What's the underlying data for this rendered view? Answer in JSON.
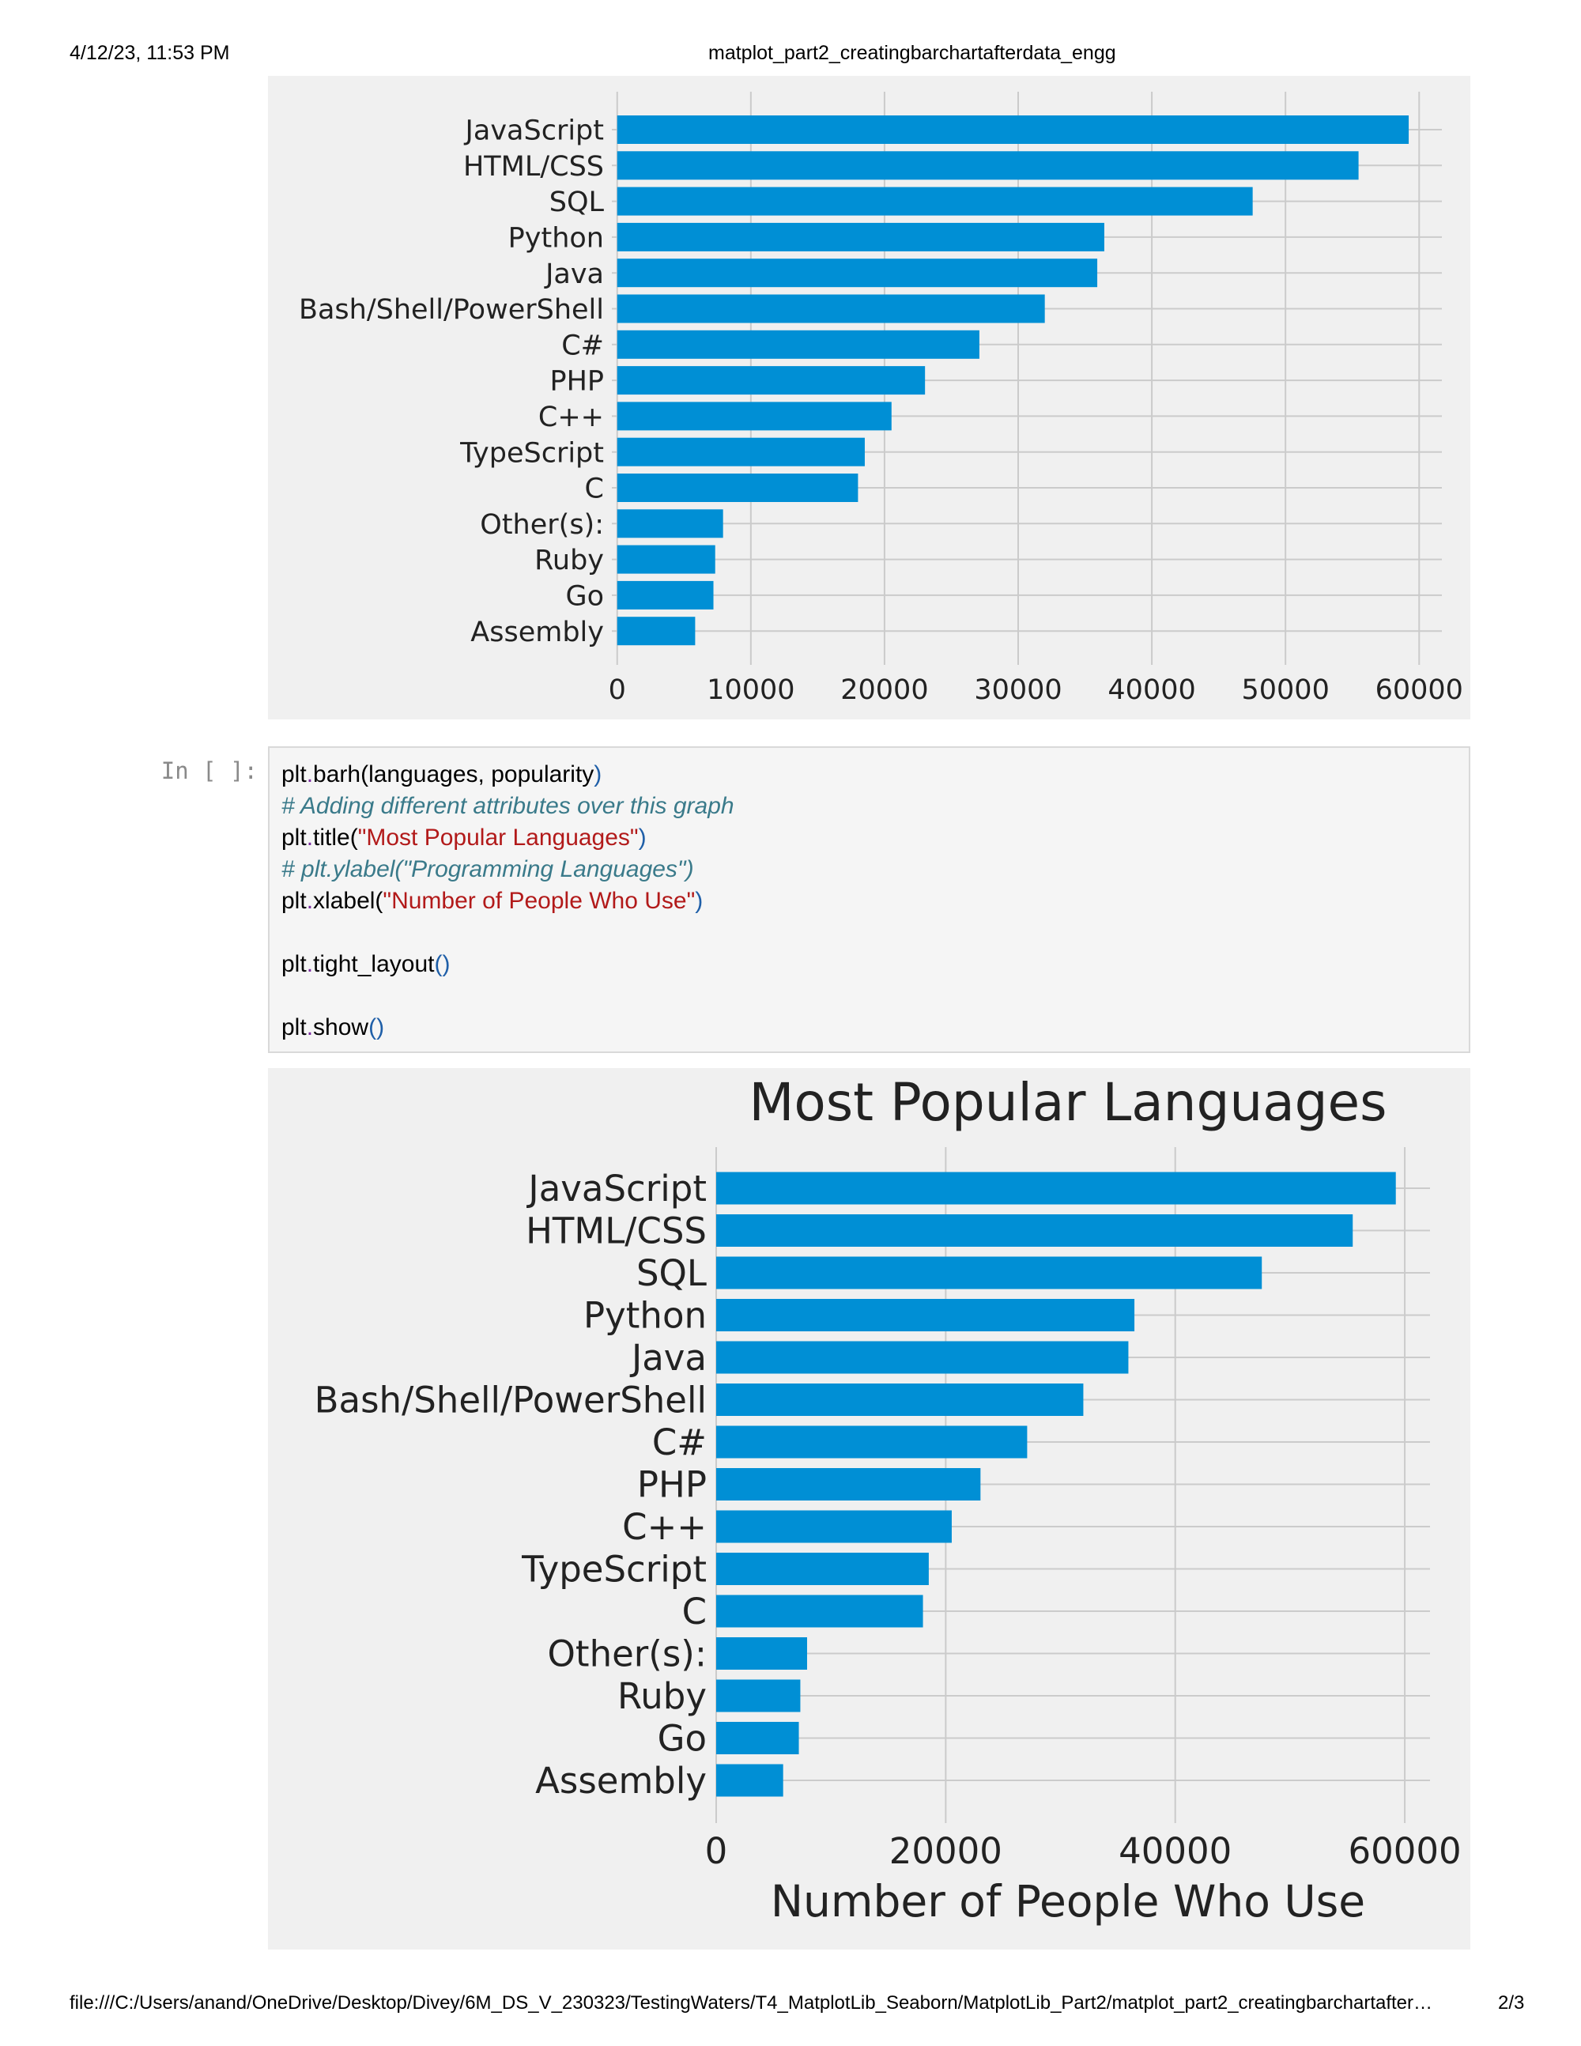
{
  "page_header": {
    "datetime": "4/12/23, 11:53 PM",
    "doc_title": "matplot_part2_creatingbarchartafterdata_engg"
  },
  "page_footer": {
    "path": "file:///C:/Users/anand/OneDrive/Desktop/Divey/6M_DS_V_230323/TestingWaters/T4_MatplotLib_Seaborn/MatplotLib_Part2/matplot_part2_creatingbarchartafter…",
    "page": "2/3"
  },
  "code_cell": {
    "prompt": "In [ ]:",
    "line1": {
      "obj": "plt",
      "dot": ".",
      "fn": "barh",
      "open": "(",
      "args": "languages, popularity",
      "close": ")"
    },
    "line2": "# Adding different attributes over this graph",
    "line3": {
      "obj": "plt",
      "dot": ".",
      "fn": "title",
      "open": "(",
      "str": "\"Most Popular Languages\"",
      "close": ")"
    },
    "line4": "# plt.ylabel(\"Programming Languages\")",
    "line5": {
      "obj": "plt",
      "dot": ".",
      "fn": "xlabel",
      "open": "(",
      "str": "\"Number of People Who Use\"",
      "close": ")"
    },
    "line6": {
      "obj": "plt",
      "dot": ".",
      "fn": "tight_layout",
      "parens": "()"
    },
    "line7": {
      "obj": "plt",
      "dot": ".",
      "fn": "show",
      "parens": "()"
    }
  },
  "colors": {
    "bar": "#008fd5",
    "figure_bg": "#f0f0f0",
    "grid": "#cbcbcb"
  },
  "chart_data": [
    {
      "type": "bar",
      "orientation": "horizontal",
      "title": "",
      "xlabel": "",
      "ylabel": "",
      "categories": [
        "JavaScript",
        "HTML/CSS",
        "SQL",
        "Python",
        "Java",
        "Bash/Shell/PowerShell",
        "C#",
        "PHP",
        "C++",
        "TypeScript",
        "C",
        "Other(s):",
        "Ruby",
        "Go",
        "Assembly"
      ],
      "values": [
        59219,
        55466,
        47544,
        36443,
        35917,
        31991,
        27097,
        23030,
        20524,
        18523,
        18017,
        7920,
        7331,
        7201,
        5833
      ],
      "xlim": [
        -400,
        61700
      ],
      "xticks": [
        "0",
        "10000",
        "20000",
        "30000",
        "40000",
        "50000",
        "60000"
      ],
      "xtick_values": [
        0,
        10000,
        20000,
        30000,
        40000,
        50000,
        60000
      ],
      "grid": true,
      "style": "fivethirtyeight"
    },
    {
      "type": "bar",
      "orientation": "horizontal",
      "title": "Most Popular Languages",
      "xlabel": "Number of People Who Use",
      "ylabel": "",
      "categories": [
        "JavaScript",
        "HTML/CSS",
        "SQL",
        "Python",
        "Java",
        "Bash/Shell/PowerShell",
        "C#",
        "PHP",
        "C++",
        "TypeScript",
        "C",
        "Other(s):",
        "Ruby",
        "Go",
        "Assembly"
      ],
      "values": [
        59219,
        55466,
        47544,
        36443,
        35917,
        31991,
        27097,
        23030,
        20524,
        18523,
        18017,
        7920,
        7331,
        7201,
        5833
      ],
      "xlim": [
        0,
        62200
      ],
      "xticks": [
        "0",
        "20000",
        "40000",
        "60000"
      ],
      "xtick_values": [
        0,
        20000,
        40000,
        60000
      ],
      "grid": true,
      "style": "fivethirtyeight"
    }
  ]
}
